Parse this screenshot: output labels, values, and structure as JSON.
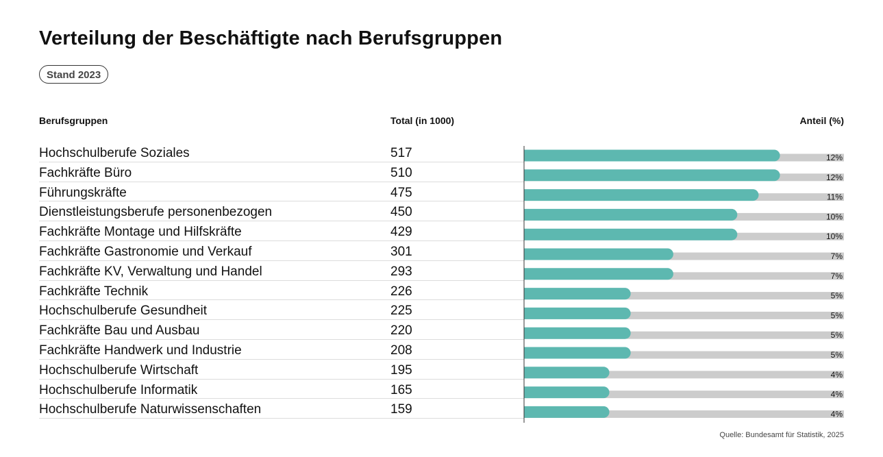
{
  "title": "Verteilung der Beschäftigte nach Berufsgruppen",
  "badge": "Stand 2023",
  "headers": {
    "category": "Berufsgruppen",
    "total": "Total (in 1000)",
    "share": "Anteil (%)"
  },
  "source": "Quelle: Bundesamt für Statistik, 2025",
  "colors": {
    "bar": "#5db8b0",
    "track": "#cccccc",
    "axis": "#333333"
  },
  "chart_data": {
    "type": "bar",
    "orientation": "horizontal",
    "categories": [
      "Hochschulberufe Soziales",
      "Fachkräfte Büro",
      "Führungskräfte",
      "Dienstleistungsberufe personenbezogen",
      "Fachkräfte Montage und Hilfskräfte",
      "Fachkräfte Gastronomie und Verkauf",
      "Fachkräfte KV, Verwaltung und Handel",
      "Fachkräfte Technik",
      "Hochschulberufe Gesundheit",
      "Fachkräfte Bau und Ausbau",
      "Fachkräfte Handwerk und Industrie",
      "Hochschulberufe Wirtschaft",
      "Hochschulberufe Informatik",
      "Hochschulberufe Naturwissenschaften"
    ],
    "totals": [
      517,
      510,
      475,
      450,
      429,
      301,
      293,
      226,
      225,
      220,
      208,
      195,
      165,
      159
    ],
    "values": [
      12,
      12,
      11,
      10,
      10,
      7,
      7,
      5,
      5,
      5,
      5,
      4,
      4,
      4
    ],
    "value_labels": [
      "12%",
      "12%",
      "11%",
      "10%",
      "10%",
      "7%",
      "7%",
      "5%",
      "5%",
      "5%",
      "5%",
      "4%",
      "4%",
      "4%"
    ],
    "xlim": [
      0,
      15
    ],
    "title": "Verteilung der Beschäftigte nach Berufsgruppen",
    "xlabel": "Anteil (%)",
    "ylabel": "Berufsgruppen"
  }
}
